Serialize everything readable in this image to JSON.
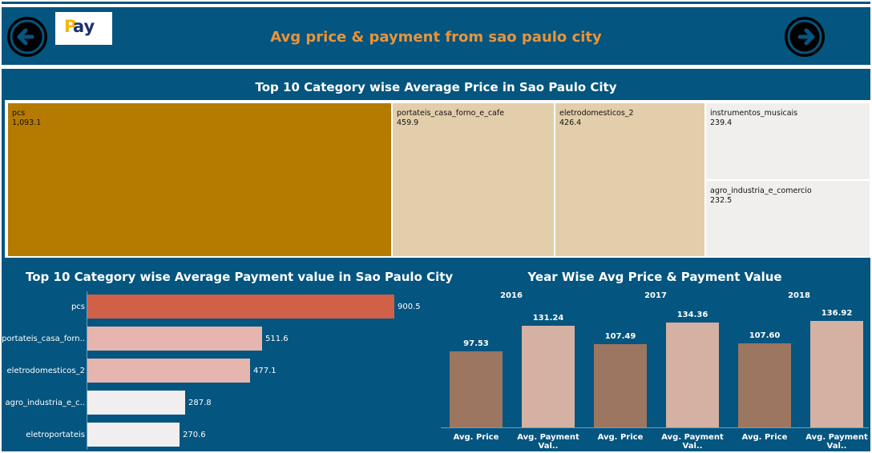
{
  "header": {
    "title": "Avg price & payment from sao paulo city",
    "logo_text": "ay",
    "logo_letter": "P",
    "back_icon": "arrow-left-icon",
    "forward_icon": "arrow-right-icon"
  },
  "colors": {
    "background": "#04557F",
    "title_accent": "#E8943A",
    "treemap_top": "#B57A00",
    "treemap_mid": "#E2CEAA",
    "treemap_low": "#F0EFEE",
    "bar_top": "#D06048",
    "bar_mid": "#E6B6AE",
    "bar_low": "#F0EEEE",
    "avg_price": "#9C7660",
    "avg_payment": "#D4B1A3"
  },
  "treemap": {
    "title": "Top 10 Category wise Average Price in Sao Paulo City",
    "tiles": [
      {
        "category": "pcs",
        "value": "1,093.1"
      },
      {
        "category": "portateis_casa_forno_e_cafe",
        "value": "459.9"
      },
      {
        "category": "eletrodomesticos_2",
        "value": "426.4"
      },
      {
        "category": "instrumentos_musicais",
        "value": "239.4"
      },
      {
        "category": "agro_industria_e_comercio",
        "value": "232.5"
      }
    ]
  },
  "payment_chart": {
    "title": "Top 10 Category wise Average Payment value in Sao Paulo City",
    "rows": [
      {
        "label": "pcs",
        "value": "900.5"
      },
      {
        "label": "portateis_casa_forn..",
        "value": "511.6"
      },
      {
        "label": "eletrodomesticos_2",
        "value": "477.1"
      },
      {
        "label": "agro_industria_e_c..",
        "value": "287.8"
      },
      {
        "label": "eletroportateis",
        "value": "270.6"
      }
    ]
  },
  "year_chart": {
    "title": "Year Wise Avg Price & Payment Value",
    "years": [
      "2016",
      "2017",
      "2018"
    ],
    "measure_labels": [
      "Avg. Price",
      "Avg. Payment Val..",
      "Avg. Price",
      "Avg. Payment Val..",
      "Avg. Price",
      "Avg. Payment Val.."
    ],
    "value_labels": [
      "97.53",
      "131.24",
      "107.49",
      "134.36",
      "107.60",
      "136.92"
    ]
  },
  "chart_data": [
    {
      "type": "treemap",
      "title": "Top 10 Category wise Average Price in Sao Paulo City",
      "categories": [
        "pcs",
        "portateis_casa_forno_e_cafe",
        "eletrodomesticos_2",
        "instrumentos_musicais",
        "agro_industria_e_comercio"
      ],
      "values": [
        1093.1,
        459.9,
        426.4,
        239.4,
        232.5
      ]
    },
    {
      "type": "bar",
      "orientation": "horizontal",
      "title": "Top 10 Category wise Average Payment value in Sao Paulo City",
      "categories": [
        "pcs",
        "portateis_casa_forn..",
        "eletrodomesticos_2",
        "agro_industria_e_c..",
        "eletroportateis"
      ],
      "values": [
        900.5,
        511.6,
        477.1,
        287.8,
        270.6
      ]
    },
    {
      "type": "bar",
      "title": "Year Wise Avg Price & Payment Value",
      "categories": [
        "2016",
        "2017",
        "2018"
      ],
      "series": [
        {
          "name": "Avg. Price",
          "values": [
            97.53,
            107.49,
            107.6
          ]
        },
        {
          "name": "Avg. Payment Val..",
          "values": [
            131.24,
            134.36,
            136.92
          ]
        }
      ]
    }
  ]
}
